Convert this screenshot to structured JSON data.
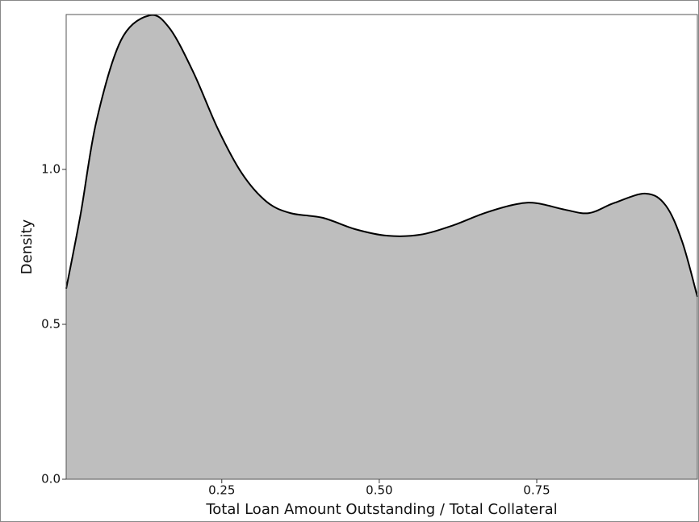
{
  "chart_data": {
    "type": "area",
    "xlabel": "Total Loan Amount Outstanding / Total Collateral",
    "ylabel": "Density",
    "x": [
      0.003,
      0.026,
      0.051,
      0.09,
      0.135,
      0.167,
      0.205,
      0.244,
      0.282,
      0.321,
      0.359,
      0.41,
      0.462,
      0.513,
      0.564,
      0.615,
      0.667,
      0.718,
      0.75,
      0.795,
      0.833,
      0.872,
      0.923,
      0.955,
      0.981,
      1.005
    ],
    "y": [
      0.615,
      0.857,
      1.156,
      1.417,
      1.497,
      1.456,
      1.313,
      1.13,
      0.987,
      0.896,
      0.859,
      0.844,
      0.807,
      0.786,
      0.789,
      0.818,
      0.859,
      0.888,
      0.891,
      0.87,
      0.859,
      0.891,
      0.922,
      0.883,
      0.766,
      0.589
    ],
    "color": "#bebebe",
    "line_color": "#000000",
    "xlim": [
      0.003,
      1.005
    ],
    "ylim": [
      0,
      1.5
    ],
    "xticks": [
      0.25,
      {
        "value": 0.5,
        "label": "0.50"
      },
      0.75
    ],
    "yticks": [
      {
        "value": 0,
        "label": "0.0"
      },
      0.5,
      {
        "value": 1,
        "label": "1.0"
      }
    ],
    "grid": false
  }
}
